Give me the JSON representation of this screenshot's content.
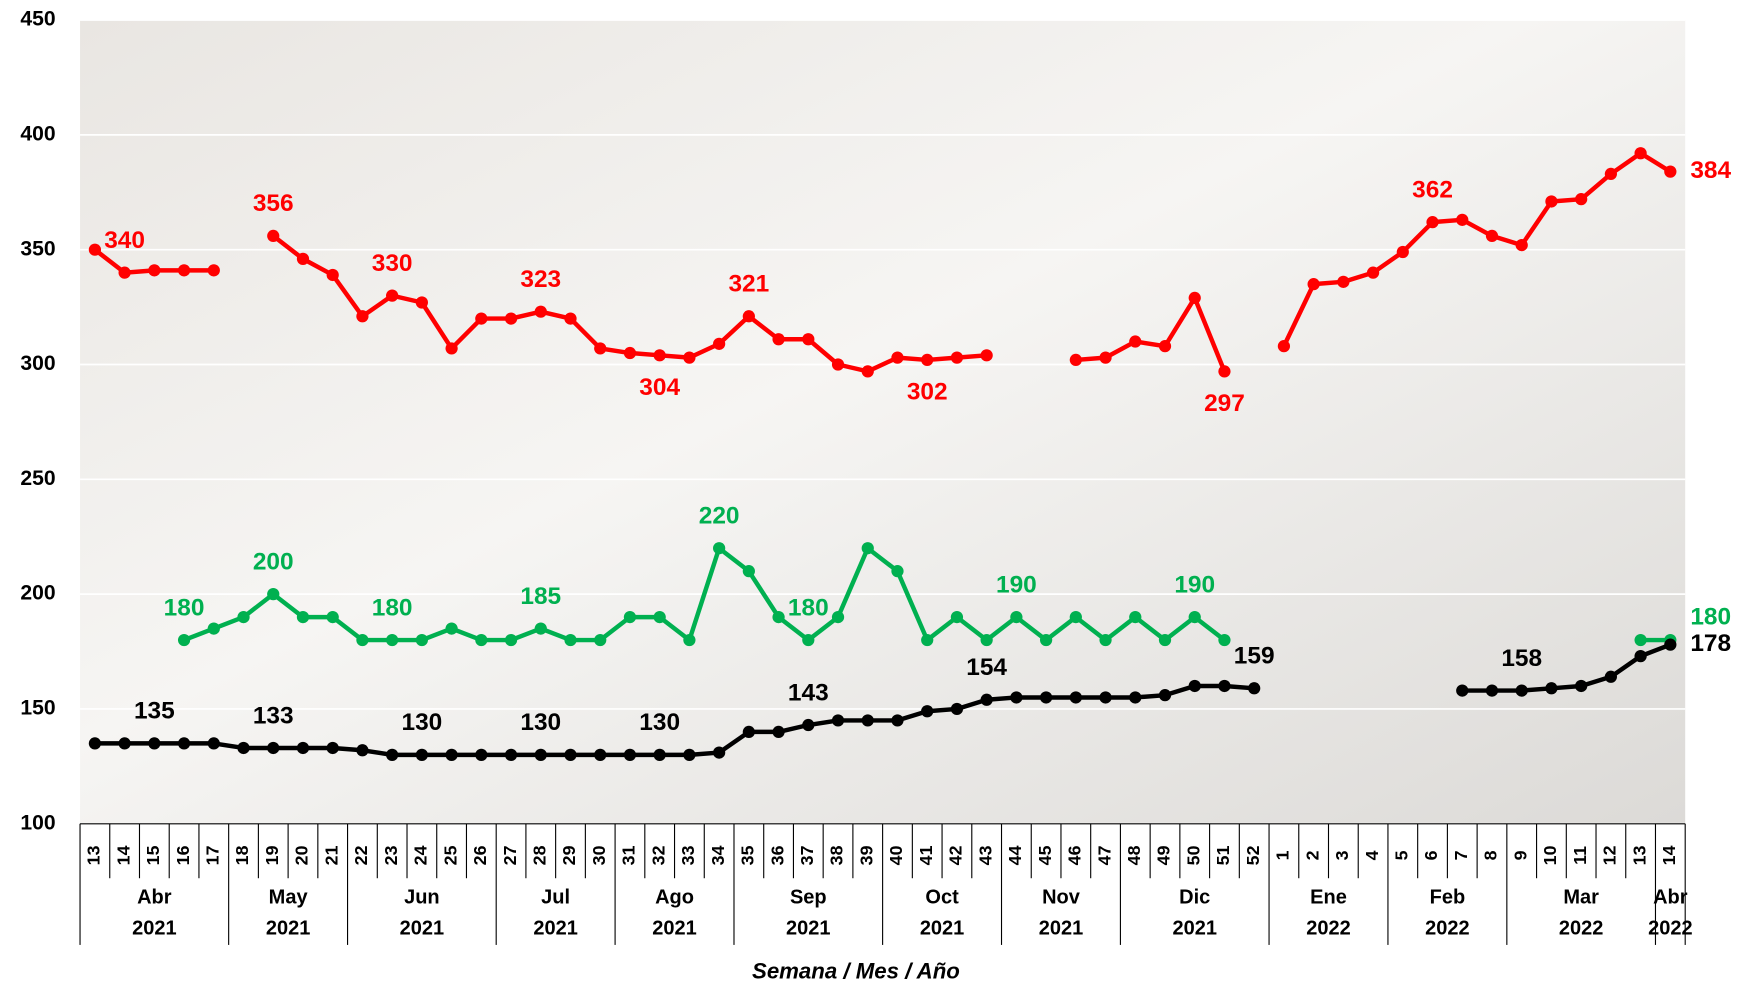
{
  "chart_data": {
    "type": "line",
    "x_label": "Semana / Mes / Año",
    "categories": [
      {
        "week": "13",
        "month": "Abr",
        "year": "2021"
      },
      {
        "week": "14",
        "month": "Abr",
        "year": "2021"
      },
      {
        "week": "15",
        "month": "Abr",
        "year": "2021"
      },
      {
        "week": "16",
        "month": "Abr",
        "year": "2021"
      },
      {
        "week": "17",
        "month": "Abr",
        "year": "2021"
      },
      {
        "week": "18",
        "month": "May",
        "year": "2021"
      },
      {
        "week": "19",
        "month": "May",
        "year": "2021"
      },
      {
        "week": "20",
        "month": "May",
        "year": "2021"
      },
      {
        "week": "21",
        "month": "May",
        "year": "2021"
      },
      {
        "week": "22",
        "month": "Jun",
        "year": "2021"
      },
      {
        "week": "23",
        "month": "Jun",
        "year": "2021"
      },
      {
        "week": "24",
        "month": "Jun",
        "year": "2021"
      },
      {
        "week": "25",
        "month": "Jun",
        "year": "2021"
      },
      {
        "week": "26",
        "month": "Jun",
        "year": "2021"
      },
      {
        "week": "27",
        "month": "Jul",
        "year": "2021"
      },
      {
        "week": "28",
        "month": "Jul",
        "year": "2021"
      },
      {
        "week": "29",
        "month": "Jul",
        "year": "2021"
      },
      {
        "week": "30",
        "month": "Jul",
        "year": "2021"
      },
      {
        "week": "31",
        "month": "Ago",
        "year": "2021"
      },
      {
        "week": "32",
        "month": "Ago",
        "year": "2021"
      },
      {
        "week": "33",
        "month": "Ago",
        "year": "2021"
      },
      {
        "week": "34",
        "month": "Ago",
        "year": "2021"
      },
      {
        "week": "35",
        "month": "Sep",
        "year": "2021"
      },
      {
        "week": "36",
        "month": "Sep",
        "year": "2021"
      },
      {
        "week": "37",
        "month": "Sep",
        "year": "2021"
      },
      {
        "week": "38",
        "month": "Sep",
        "year": "2021"
      },
      {
        "week": "39",
        "month": "Sep",
        "year": "2021"
      },
      {
        "week": "40",
        "month": "Oct",
        "year": "2021"
      },
      {
        "week": "41",
        "month": "Oct",
        "year": "2021"
      },
      {
        "week": "42",
        "month": "Oct",
        "year": "2021"
      },
      {
        "week": "43",
        "month": "Oct",
        "year": "2021"
      },
      {
        "week": "44",
        "month": "Nov",
        "year": "2021"
      },
      {
        "week": "45",
        "month": "Nov",
        "year": "2021"
      },
      {
        "week": "46",
        "month": "Nov",
        "year": "2021"
      },
      {
        "week": "47",
        "month": "Nov",
        "year": "2021"
      },
      {
        "week": "48",
        "month": "Dic",
        "year": "2021"
      },
      {
        "week": "49",
        "month": "Dic",
        "year": "2021"
      },
      {
        "week": "50",
        "month": "Dic",
        "year": "2021"
      },
      {
        "week": "51",
        "month": "Dic",
        "year": "2021"
      },
      {
        "week": "52",
        "month": "Dic",
        "year": "2021"
      },
      {
        "week": "1",
        "month": "Ene",
        "year": "2022"
      },
      {
        "week": "2",
        "month": "Ene",
        "year": "2022"
      },
      {
        "week": "3",
        "month": "Ene",
        "year": "2022"
      },
      {
        "week": "4",
        "month": "Ene",
        "year": "2022"
      },
      {
        "week": "5",
        "month": "Feb",
        "year": "2022"
      },
      {
        "week": "6",
        "month": "Feb",
        "year": "2022"
      },
      {
        "week": "7",
        "month": "Feb",
        "year": "2022"
      },
      {
        "week": "8",
        "month": "Feb",
        "year": "2022"
      },
      {
        "week": "9",
        "month": "Mar",
        "year": "2022"
      },
      {
        "week": "10",
        "month": "Mar",
        "year": "2022"
      },
      {
        "week": "11",
        "month": "Mar",
        "year": "2022"
      },
      {
        "week": "12",
        "month": "Mar",
        "year": "2022"
      },
      {
        "week": "13",
        "month": "Mar",
        "year": "2022"
      },
      {
        "week": "14",
        "month": "Abr",
        "year": "2022"
      }
    ],
    "series": [
      {
        "color": "#ff0000",
        "values": [
          350,
          340,
          341,
          341,
          341,
          null,
          356,
          346,
          339,
          321,
          330,
          327,
          307,
          320,
          320,
          323,
          320,
          307,
          305,
          304,
          303,
          309,
          321,
          311,
          311,
          300,
          297,
          303,
          302,
          303,
          304,
          null,
          null,
          302,
          303,
          310,
          308,
          329,
          297,
          null,
          308,
          335,
          336,
          340,
          349,
          362,
          363,
          356,
          352,
          371,
          372,
          383,
          392,
          384
        ],
        "value_labels": [
          null,
          340,
          null,
          null,
          null,
          null,
          356,
          null,
          null,
          null,
          330,
          null,
          null,
          null,
          null,
          323,
          null,
          null,
          null,
          304,
          null,
          null,
          321,
          null,
          null,
          null,
          null,
          null,
          302,
          null,
          null,
          null,
          null,
          null,
          null,
          null,
          null,
          null,
          297,
          null,
          null,
          null,
          null,
          null,
          null,
          362,
          null,
          null,
          null,
          null,
          null,
          null,
          null,
          384
        ]
      },
      {
        "color": "#00b050",
        "values": [
          null,
          null,
          null,
          180,
          185,
          190,
          200,
          190,
          190,
          180,
          180,
          180,
          185,
          180,
          180,
          185,
          180,
          180,
          190,
          190,
          180,
          220,
          210,
          190,
          180,
          190,
          220,
          210,
          180,
          190,
          180,
          190,
          180,
          190,
          180,
          190,
          180,
          190,
          180,
          null,
          null,
          null,
          null,
          null,
          null,
          null,
          null,
          null,
          null,
          null,
          null,
          null,
          180,
          180
        ],
        "value_labels": [
          null,
          null,
          null,
          180,
          null,
          null,
          200,
          null,
          null,
          null,
          180,
          null,
          null,
          null,
          null,
          185,
          null,
          null,
          null,
          null,
          null,
          220,
          null,
          null,
          180,
          null,
          null,
          null,
          null,
          null,
          null,
          190,
          null,
          null,
          null,
          null,
          null,
          190,
          null,
          null,
          null,
          null,
          null,
          null,
          null,
          null,
          null,
          null,
          null,
          null,
          null,
          null,
          null,
          180
        ]
      },
      {
        "color": "#000000",
        "values": [
          135,
          135,
          135,
          135,
          135,
          133,
          133,
          133,
          133,
          132,
          130,
          130,
          130,
          130,
          130,
          130,
          130,
          130,
          130,
          130,
          130,
          131,
          140,
          140,
          143,
          145,
          145,
          145,
          149,
          150,
          154,
          155,
          155,
          155,
          155,
          155,
          156,
          160,
          160,
          159,
          null,
          null,
          null,
          null,
          null,
          null,
          158,
          158,
          158,
          159,
          160,
          164,
          173,
          178
        ],
        "value_labels": [
          null,
          null,
          135,
          null,
          null,
          null,
          133,
          null,
          null,
          null,
          null,
          130,
          null,
          null,
          null,
          130,
          null,
          null,
          null,
          130,
          null,
          null,
          null,
          null,
          143,
          null,
          null,
          null,
          null,
          null,
          154,
          null,
          null,
          null,
          null,
          null,
          null,
          null,
          null,
          159,
          null,
          null,
          null,
          null,
          null,
          null,
          null,
          null,
          158,
          null,
          null,
          null,
          null,
          178
        ]
      }
    ],
    "ylim": [
      100,
      450
    ],
    "yticks": [
      100,
      150,
      200,
      250,
      300,
      350,
      400,
      450
    ],
    "grid": true
  }
}
